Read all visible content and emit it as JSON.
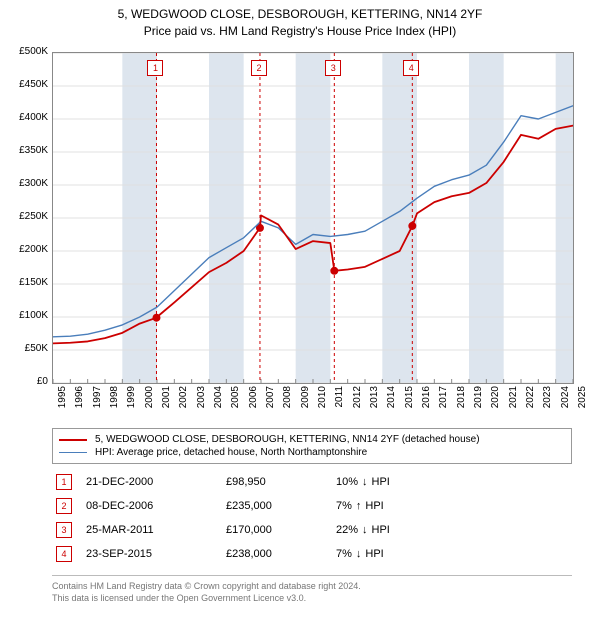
{
  "title": {
    "line1": "5, WEDGWOOD CLOSE, DESBOROUGH, KETTERING, NN14 2YF",
    "line2": "Price paid vs. HM Land Registry's House Price Index (HPI)",
    "fontsize": 12
  },
  "chart": {
    "type": "line",
    "x_axis": {
      "min": 1995,
      "max": 2025,
      "tick_step": 1
    },
    "y_axis": {
      "min": 0,
      "max": 500000,
      "tick_step": 50000,
      "prefix": "£",
      "label_suffix_k": true
    },
    "background_color": "#ffffff",
    "grid_color": "#e0e0e0",
    "shaded_band_color": "#dde5ee",
    "shaded_band_years": [
      [
        1999,
        2001
      ],
      [
        2004,
        2006
      ],
      [
        2009,
        2011
      ],
      [
        2014,
        2016
      ],
      [
        2019,
        2021
      ],
      [
        2024,
        2025
      ]
    ],
    "series": [
      {
        "name": "HPI: Average price, detached house, North Northamptonshire",
        "color": "#4a7ebb",
        "width": 1.4,
        "points": [
          [
            1995,
            70000
          ],
          [
            1996,
            71000
          ],
          [
            1997,
            74000
          ],
          [
            1998,
            80000
          ],
          [
            1999,
            88000
          ],
          [
            2000,
            100000
          ],
          [
            2001,
            115000
          ],
          [
            2002,
            140000
          ],
          [
            2003,
            165000
          ],
          [
            2004,
            190000
          ],
          [
            2005,
            205000
          ],
          [
            2006,
            220000
          ],
          [
            2007,
            245000
          ],
          [
            2008,
            235000
          ],
          [
            2009,
            210000
          ],
          [
            2010,
            225000
          ],
          [
            2011,
            222000
          ],
          [
            2012,
            225000
          ],
          [
            2013,
            230000
          ],
          [
            2014,
            245000
          ],
          [
            2015,
            260000
          ],
          [
            2016,
            280000
          ],
          [
            2017,
            298000
          ],
          [
            2018,
            308000
          ],
          [
            2019,
            315000
          ],
          [
            2020,
            330000
          ],
          [
            2021,
            365000
          ],
          [
            2022,
            405000
          ],
          [
            2023,
            400000
          ],
          [
            2024,
            410000
          ],
          [
            2025,
            420000
          ]
        ]
      },
      {
        "name": "5, WEDGWOOD CLOSE, DESBOROUGH, KETTERING, NN14 2YF (detached house)",
        "color": "#cc0000",
        "width": 1.8,
        "points": [
          [
            1995,
            60000
          ],
          [
            1996,
            61000
          ],
          [
            1997,
            63000
          ],
          [
            1998,
            68000
          ],
          [
            1999,
            76000
          ],
          [
            2000,
            90000
          ],
          [
            2000.97,
            98950
          ],
          [
            2001,
            100000
          ],
          [
            2002,
            122000
          ],
          [
            2003,
            145000
          ],
          [
            2004,
            168000
          ],
          [
            2005,
            182000
          ],
          [
            2006,
            200000
          ],
          [
            2006.94,
            235000
          ],
          [
            2007,
            254000
          ],
          [
            2008,
            240000
          ],
          [
            2009,
            203000
          ],
          [
            2010,
            215000
          ],
          [
            2011,
            212000
          ],
          [
            2011.23,
            170000
          ],
          [
            2012,
            172000
          ],
          [
            2013,
            176000
          ],
          [
            2014,
            188000
          ],
          [
            2015,
            200000
          ],
          [
            2015.73,
            238000
          ],
          [
            2016,
            257000
          ],
          [
            2017,
            274000
          ],
          [
            2018,
            283000
          ],
          [
            2019,
            288000
          ],
          [
            2020,
            303000
          ],
          [
            2021,
            335000
          ],
          [
            2022,
            376000
          ],
          [
            2023,
            370000
          ],
          [
            2024,
            385000
          ],
          [
            2025,
            390000
          ]
        ],
        "jump_segments": [
          [
            [
              2006.9,
              202000
            ],
            [
              2006.94,
              235000
            ]
          ],
          [
            [
              2011.2,
              212000
            ],
            [
              2011.23,
              170000
            ]
          ],
          [
            [
              2015.7,
              201000
            ],
            [
              2015.73,
              238000
            ]
          ]
        ]
      }
    ],
    "sale_markers": [
      {
        "num": "1",
        "year": 2000.97,
        "price": 98950
      },
      {
        "num": "2",
        "year": 2006.94,
        "price": 235000
      },
      {
        "num": "3",
        "year": 2011.23,
        "price": 170000
      },
      {
        "num": "4",
        "year": 2015.73,
        "price": 238000
      }
    ],
    "marker_line_color": "#cc0000",
    "marker_line_dash": "3,3",
    "marker_dot_radius": 4
  },
  "legend": {
    "series1_label": "5, WEDGWOOD CLOSE, DESBOROUGH, KETTERING, NN14 2YF (detached house)",
    "series1_color": "#cc0000",
    "series2_label": "HPI: Average price, detached house, North Northamptonshire",
    "series2_color": "#4a7ebb"
  },
  "sales": [
    {
      "num": "1",
      "date": "21-DEC-2000",
      "price": "£98,950",
      "diff": "10%",
      "arrow": "↓",
      "suffix": "HPI"
    },
    {
      "num": "2",
      "date": "08-DEC-2006",
      "price": "£235,000",
      "diff": "7%",
      "arrow": "↑",
      "suffix": "HPI"
    },
    {
      "num": "3",
      "date": "25-MAR-2011",
      "price": "£170,000",
      "diff": "22%",
      "arrow": "↓",
      "suffix": "HPI"
    },
    {
      "num": "4",
      "date": "23-SEP-2015",
      "price": "£238,000",
      "diff": "7%",
      "arrow": "↓",
      "suffix": "HPI"
    }
  ],
  "footer": {
    "line1": "Contains HM Land Registry data © Crown copyright and database right 2024.",
    "line2": "This data is licensed under the Open Government Licence v3.0."
  }
}
